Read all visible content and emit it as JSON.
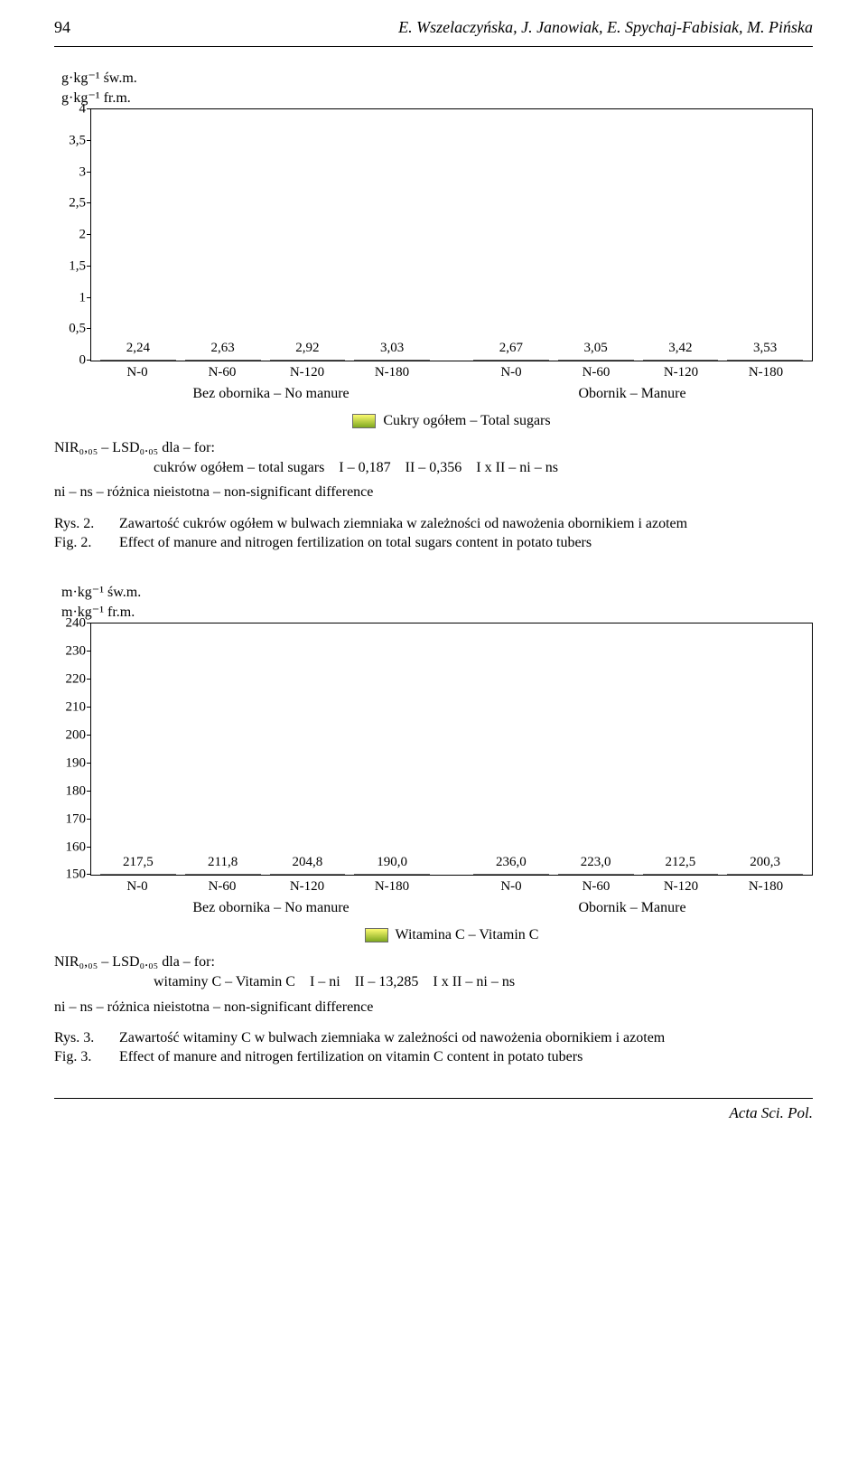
{
  "page_number": "94",
  "authors": "E. Wszelaczyńska, J. Janowiak, E. Spychaj-Fabisiak, M. Pińska",
  "chart1": {
    "unit_top": "g·kg⁻¹ św.m.",
    "unit_bottom": "g·kg⁻¹ fr.m.",
    "type": "bar",
    "categories": [
      "N-0",
      "N-60",
      "N-120",
      "N-180",
      "N-0",
      "N-60",
      "N-120",
      "N-180"
    ],
    "values": [
      2.24,
      2.63,
      2.92,
      3.03,
      2.67,
      3.05,
      3.42,
      3.53
    ],
    "value_labels": [
      "2,24",
      "2,63",
      "2,92",
      "3,03",
      "2,67",
      "3,05",
      "3,42",
      "3,53"
    ],
    "ylim": [
      0,
      4
    ],
    "ytick_step": 0.5,
    "ytick_labels": [
      "0",
      "0,5",
      "1",
      "1,5",
      "2",
      "2,5",
      "3",
      "3,5",
      "4"
    ],
    "group_labels": [
      "Bez obornika – No manure",
      "Obornik – Manure"
    ],
    "legend_label": "Cukry ogółem – Total sugars",
    "bar_fill_top": "#fdfb70",
    "bar_fill_bottom": "#7fa81f",
    "bar_border": "#6b6b6b",
    "background": "#ffffff",
    "nir_line1": "NIR₀,₀₅ – LSD₀.₀₅ dla – for:",
    "nir_line2": "cukrów ogółem – total sugars    I – 0,187    II – 0,356    I x II – ni – ns",
    "sig_line": "ni – ns – różnica nieistotna – non-significant difference"
  },
  "caption1": {
    "rys_tag": "Rys. 2.",
    "rys_text": "Zawartość cukrów ogółem w bulwach ziemniaka w zależności od nawożenia obornikiem i azotem",
    "fig_tag": "Fig. 2.",
    "fig_text": "Effect of manure and nitrogen fertilization on total sugars content in potato tubers"
  },
  "chart2": {
    "unit_top": "m·kg⁻¹ św.m.",
    "unit_bottom": "m·kg⁻¹ fr.m.",
    "type": "bar",
    "categories": [
      "N-0",
      "N-60",
      "N-120",
      "N-180",
      "N-0",
      "N-60",
      "N-120",
      "N-180"
    ],
    "values": [
      217.5,
      211.8,
      204.8,
      190.0,
      236.0,
      223.0,
      212.5,
      200.3
    ],
    "value_labels": [
      "217,5",
      "211,8",
      "204,8",
      "190,0",
      "236,0",
      "223,0",
      "212,5",
      "200,3"
    ],
    "ylim": [
      150,
      240
    ],
    "ytick_step": 10,
    "ytick_labels": [
      "150",
      "160",
      "170",
      "180",
      "190",
      "200",
      "210",
      "220",
      "230",
      "240"
    ],
    "group_labels": [
      "Bez obornika – No manure",
      "Obornik – Manure"
    ],
    "legend_label": "Witamina C – Vitamin C",
    "bar_fill_top": "#fdfb70",
    "bar_fill_bottom": "#7fa81f",
    "bar_border": "#6b6b6b",
    "background": "#ffffff",
    "nir_line1": "NIR₀,₀₅ – LSD₀.₀₅ dla – for:",
    "nir_line2": "witaminy C – Vitamin C    I – ni    II – 13,285    I x II – ni – ns",
    "sig_line": "ni – ns – różnica nieistotna – non-significant difference"
  },
  "caption2": {
    "rys_tag": "Rys. 3.",
    "rys_text": "Zawartość witaminy C w bulwach ziemniaka w zależności od nawożenia obornikiem i azotem",
    "fig_tag": "Fig. 3.",
    "fig_text": "Effect of manure and nitrogen fertilization on vitamin C content in potato tubers"
  },
  "footer_text": "Acta Sci. Pol."
}
